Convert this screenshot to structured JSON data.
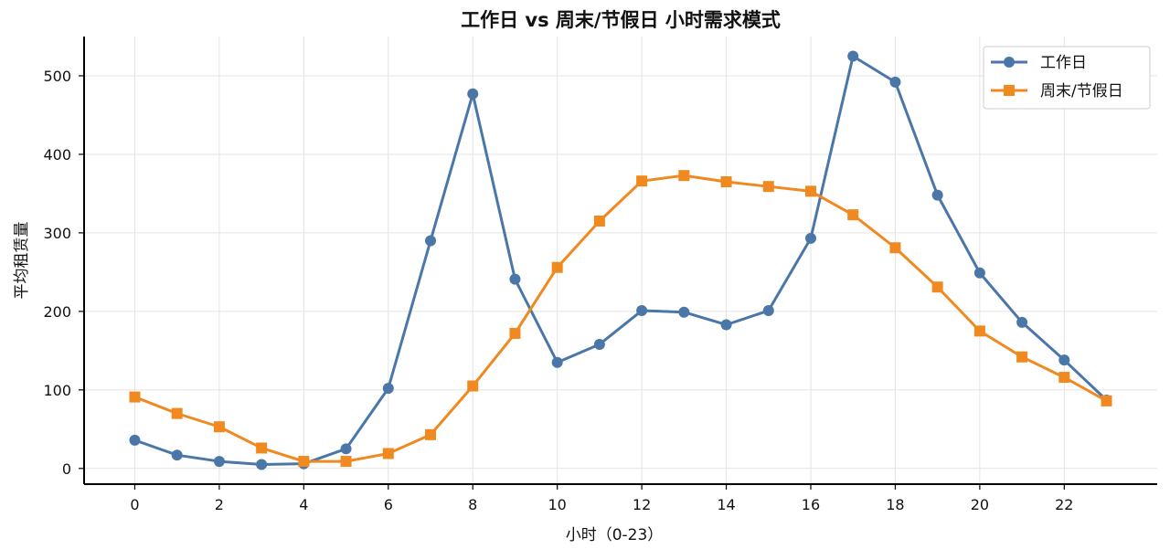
{
  "chart_data": {
    "type": "line",
    "title": "工作日 vs 周末/节假日 小时需求模式",
    "xlabel": "小时（0-23）",
    "ylabel": "平均租赁量",
    "x": [
      0,
      1,
      2,
      3,
      4,
      5,
      6,
      7,
      8,
      9,
      10,
      11,
      12,
      13,
      14,
      15,
      16,
      17,
      18,
      19,
      20,
      21,
      22,
      23
    ],
    "xticks": [
      0,
      2,
      4,
      6,
      8,
      10,
      12,
      14,
      16,
      18,
      20,
      22
    ],
    "yticks": [
      0,
      100,
      200,
      300,
      400,
      500
    ],
    "xlim": [
      -1.2,
      24.2
    ],
    "ylim": [
      -20,
      550
    ],
    "grid": true,
    "legend_position": "top-right",
    "series": [
      {
        "name": "工作日",
        "color": "#4a76a8",
        "marker": "circle",
        "values": [
          36,
          17,
          9,
          5,
          6,
          25,
          102,
          290,
          477,
          241,
          135,
          158,
          201,
          199,
          183,
          201,
          293,
          525,
          492,
          348,
          249,
          186,
          138,
          87
        ]
      },
      {
        "name": "周末/节假日",
        "color": "#f0891f",
        "marker": "square",
        "values": [
          91,
          70,
          53,
          26,
          9,
          9,
          19,
          43,
          105,
          172,
          256,
          315,
          366,
          373,
          365,
          359,
          353,
          323,
          281,
          231,
          175,
          142,
          116,
          86
        ]
      }
    ]
  }
}
